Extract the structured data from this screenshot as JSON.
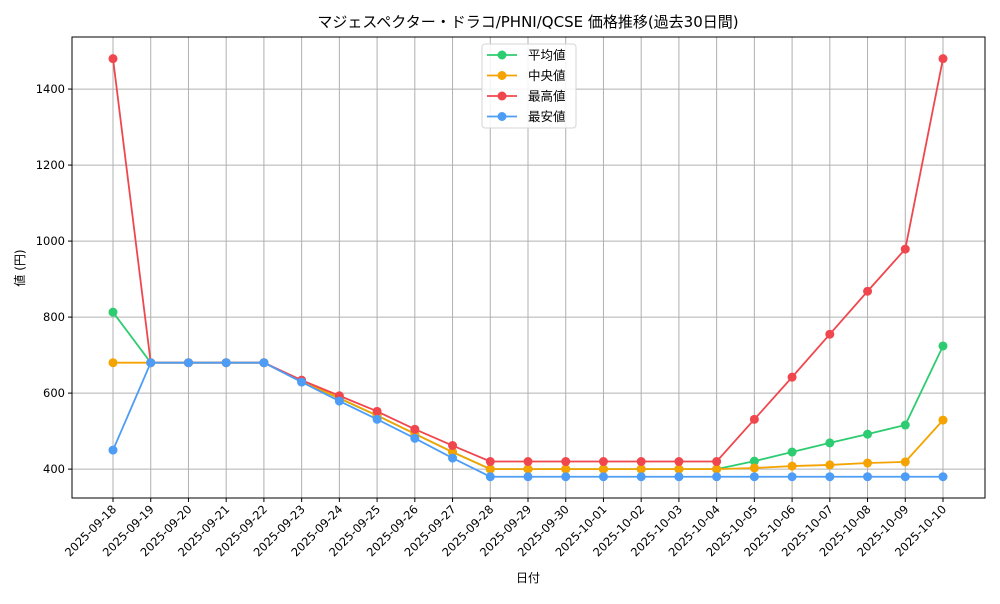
{
  "chart_data": {
    "type": "line",
    "title": "マジェスペクター・ドラコ/PHNI/QCSE 価格推移(過去30日間)",
    "xlabel": "日付",
    "ylabel": "値 (円)",
    "x": [
      "2025-09-18",
      "2025-09-19",
      "2025-09-20",
      "2025-09-21",
      "2025-09-22",
      "2025-09-23",
      "2025-09-24",
      "2025-09-25",
      "2025-09-26",
      "2025-09-27",
      "2025-09-28",
      "2025-09-29",
      "2025-09-30",
      "2025-10-01",
      "2025-10-02",
      "2025-10-03",
      "2025-10-04",
      "2025-10-05",
      "2025-10-06",
      "2025-10-07",
      "2025-10-08",
      "2025-10-09",
      "2025-10-10"
    ],
    "series": [
      {
        "name": "平均値",
        "color": "#2ecc71",
        "values": [
          813,
          680,
          680,
          680,
          680,
          631,
          586,
          541,
          493,
          445,
          400,
          400,
          400,
          400,
          400,
          400,
          400,
          421,
          445,
          469,
          492,
          516,
          724
        ]
      },
      {
        "name": "中央値",
        "color": "#f5a300",
        "values": [
          680,
          680,
          680,
          680,
          680,
          631,
          587,
          541,
          493,
          445,
          400,
          400,
          400,
          400,
          400,
          400,
          400,
          403,
          408,
          411,
          416,
          419,
          529
        ]
      },
      {
        "name": "最高値",
        "color": "#f0474e",
        "values": [
          1480,
          680,
          680,
          680,
          680,
          634,
          593,
          552,
          505,
          462,
          420,
          420,
          420,
          420,
          420,
          420,
          420,
          531,
          642,
          755,
          868,
          979,
          1480
        ]
      },
      {
        "name": "最安値",
        "color": "#4d9df7",
        "values": [
          450,
          680,
          680,
          680,
          680,
          629,
          579,
          531,
          481,
          429,
          380,
          380,
          380,
          380,
          380,
          380,
          380,
          380,
          380,
          380,
          380,
          380,
          380
        ]
      }
    ],
    "yticks": [
      400,
      600,
      800,
      1000,
      1200,
      1400
    ],
    "ylim": [
      324,
      1537
    ],
    "grid": true,
    "legend_position": "upper center"
  }
}
